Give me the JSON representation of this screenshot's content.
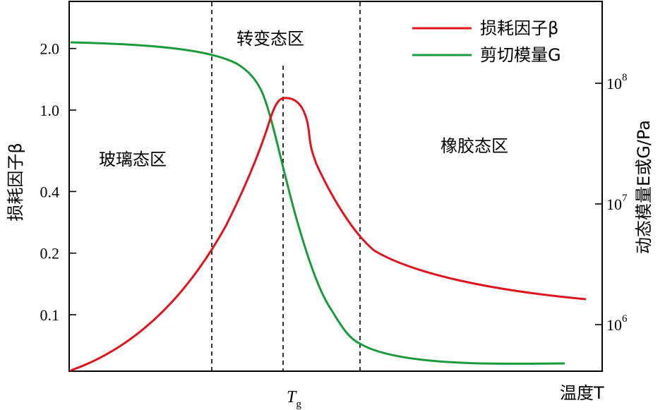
{
  "chart_data": {
    "type": "line",
    "title": "",
    "xlabel": "温度T",
    "x_marker_label": "T",
    "x_marker_sub": "g",
    "ylabel_left": "损耗因子β",
    "ylabel_right": "动态模量E或G/Pa",
    "y_left_scale": "log",
    "y_right_scale": "log",
    "y_left_ticks": [
      {
        "value": 0.1,
        "label": "0.1"
      },
      {
        "value": 0.2,
        "label": "0.2"
      },
      {
        "value": 0.4,
        "label": "0.4"
      },
      {
        "value": 1.0,
        "label": "1.0"
      },
      {
        "value": 2.0,
        "label": "2.0"
      }
    ],
    "y_right_ticks": [
      {
        "base": "10",
        "exp": "6",
        "value": 1000000
      },
      {
        "base": "10",
        "exp": "7",
        "value": 10000000
      },
      {
        "base": "10",
        "exp": "8",
        "value": 100000000
      }
    ],
    "regions": [
      {
        "label": "玻璃态区"
      },
      {
        "label": "转变态区"
      },
      {
        "label": "橡胶态区"
      }
    ],
    "series": [
      {
        "name": "损耗因子β",
        "color": "#e0141e"
      },
      {
        "name": "剪切模量G",
        "color": "#1a9a3c"
      }
    ],
    "grid": false,
    "legend_position": "top-right"
  }
}
